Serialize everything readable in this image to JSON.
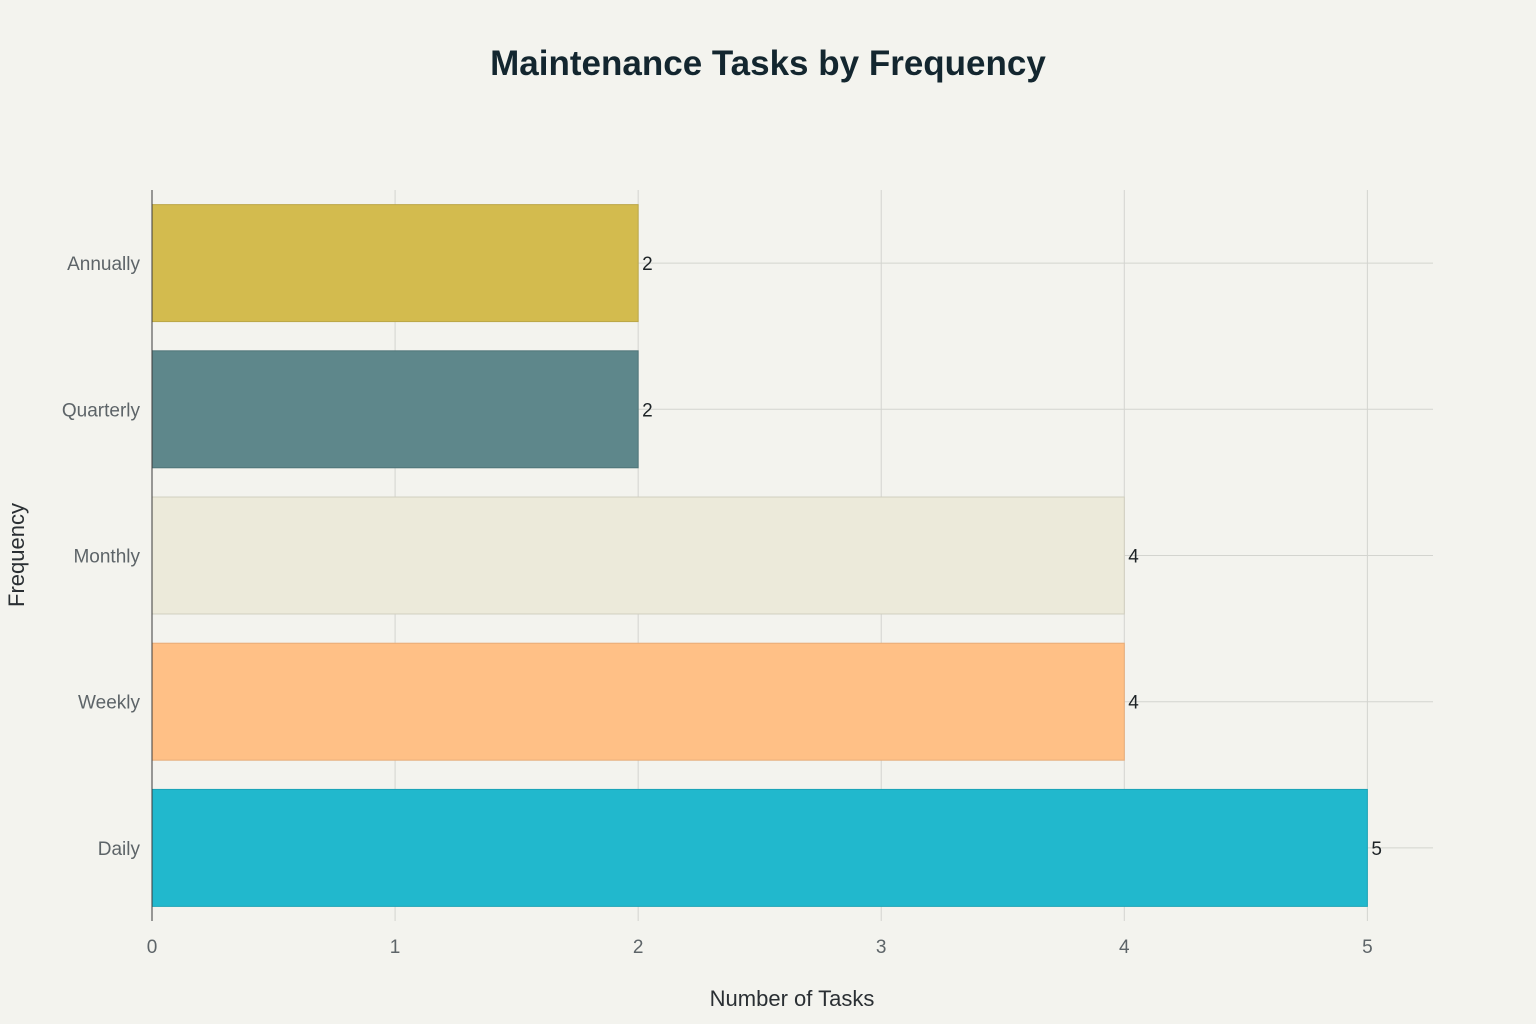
{
  "chart_data": {
    "type": "bar",
    "orientation": "horizontal",
    "title": "Maintenance Tasks by Frequency",
    "xlabel": "Number of Tasks",
    "ylabel": "Frequency",
    "categories": [
      "Daily",
      "Weekly",
      "Monthly",
      "Quarterly",
      "Annually"
    ],
    "values": [
      5,
      4,
      4,
      2,
      2
    ],
    "data_labels": [
      "5",
      "4",
      "4",
      "2",
      "2"
    ],
    "bar_colors": [
      "#21b8cd",
      "#ffc086",
      "#eceada",
      "#5e878b",
      "#d3bb4e"
    ],
    "bar_border_colors": [
      "#1aa3b6",
      "#e7ab77",
      "#d1cfbf",
      "#4f7478",
      "#bba647"
    ],
    "x_ticks": [
      0,
      1,
      2,
      3,
      4,
      5
    ],
    "x_tick_labels": [
      "0",
      "1",
      "2",
      "3",
      "4",
      "5"
    ],
    "xlim": [
      0,
      5.27
    ],
    "grid": true,
    "legend": "none"
  }
}
